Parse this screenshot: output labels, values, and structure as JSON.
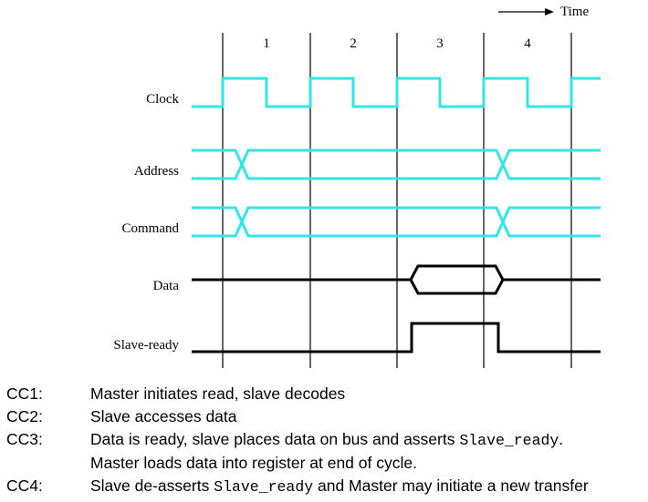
{
  "time_axis": {
    "label": "Time"
  },
  "cycles": [
    "1",
    "2",
    "3",
    "4"
  ],
  "signals": [
    {
      "name": "Clock",
      "kind": "clock",
      "color": "#33e6e6"
    },
    {
      "name": "Address",
      "kind": "bus",
      "color": "#33e6e6",
      "transitions_at_edges": [
        0,
        3
      ]
    },
    {
      "name": "Command",
      "kind": "bus",
      "color": "#33e6e6",
      "transitions_at_edges": [
        0,
        3
      ]
    },
    {
      "name": "Data",
      "kind": "bus-valid-window",
      "color": "#000000",
      "valid_from_cycle": 3,
      "valid_to_cycle": 3
    },
    {
      "name": "Slave-ready",
      "kind": "level",
      "color": "#000000",
      "high_from_cycle": 3,
      "high_to_cycle": 3
    }
  ],
  "legend": [
    {
      "label": "CC1:",
      "lines": [
        [
          {
            "text": "Master initiates read, slave decodes"
          }
        ]
      ]
    },
    {
      "label": "CC2:",
      "lines": [
        [
          {
            "text": "Slave accesses data"
          }
        ]
      ]
    },
    {
      "label": "CC3:",
      "lines": [
        [
          {
            "text": "Data is ready, slave places data on bus and asserts "
          },
          {
            "text": "Slave_ready",
            "code": true
          },
          {
            "text": "."
          }
        ],
        [
          {
            "text": "Master loads data into register at end of cycle."
          }
        ]
      ]
    },
    {
      "label": "CC4:",
      "lines": [
        [
          {
            "text": "Slave de-asserts "
          },
          {
            "text": "Slave_ready",
            "code": true
          },
          {
            "text": " and Master may initiate a new transfer"
          }
        ]
      ]
    }
  ]
}
